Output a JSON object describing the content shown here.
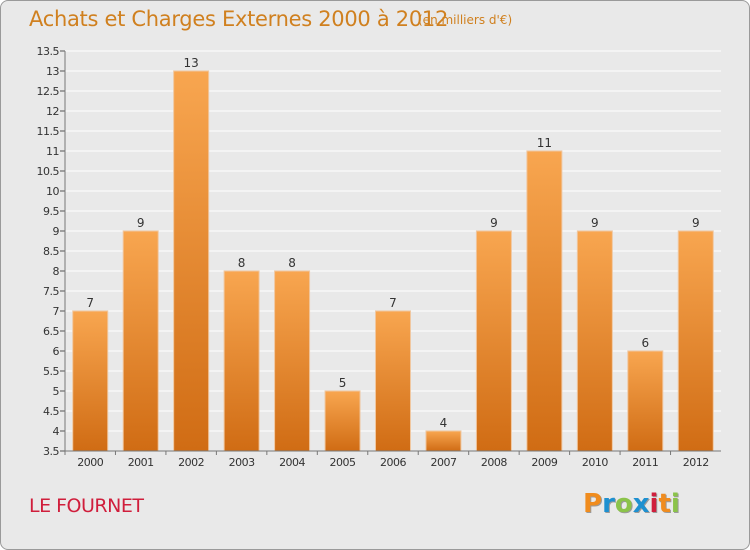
{
  "header": {
    "title": "Achats et Charges Externes 2000 à 2012",
    "unit": "(en milliers d'€)"
  },
  "footer": {
    "commune": "LE FOURNET",
    "logo_text": "Proxiti",
    "logo_colors": [
      "#f08c1e",
      "#1e90d0",
      "#8bc34a",
      "#1e90d0",
      "#d01e3c",
      "#f08c1e",
      "#8bc34a"
    ]
  },
  "colors": {
    "bar_top": "#f8a650",
    "bar_bottom": "#d06c14",
    "bar_stroke": "#f0c7a0",
    "grid": "#ffffff",
    "axis_text": "#333333",
    "plot_bg": "#e9e9e9"
  },
  "chart_data": {
    "type": "bar",
    "title": "Achats et Charges Externes 2000 à 2012",
    "xlabel": "",
    "ylabel": "",
    "categories": [
      "2000",
      "2001",
      "2002",
      "2003",
      "2004",
      "2005",
      "2006",
      "2007",
      "2008",
      "2009",
      "2010",
      "2011",
      "2012"
    ],
    "values": [
      7,
      9,
      13,
      8,
      8,
      5,
      7,
      4,
      9,
      11,
      9,
      6,
      9
    ],
    "data_labels": [
      "7",
      "9",
      "13",
      "8",
      "8",
      "5",
      "7",
      "4",
      "9",
      "11",
      "9",
      "6",
      "9"
    ],
    "ylim": [
      3.5,
      13.5
    ],
    "yticks": [
      3.5,
      4,
      4.5,
      5,
      5.5,
      6,
      6.5,
      7,
      7.5,
      8,
      8.5,
      9,
      9.5,
      10,
      10.5,
      11,
      11.5,
      12,
      12.5,
      13,
      13.5
    ],
    "ytick_labels": [
      "3.5",
      "4",
      "4.5",
      "5",
      "5.5",
      "6",
      "6.5",
      "7",
      "7.5",
      "8",
      "8.5",
      "9",
      "9.5",
      "10",
      "10.5",
      "11",
      "11.5",
      "12",
      "12.5",
      "13",
      "13.5"
    ],
    "grid": true,
    "legend": "none"
  }
}
